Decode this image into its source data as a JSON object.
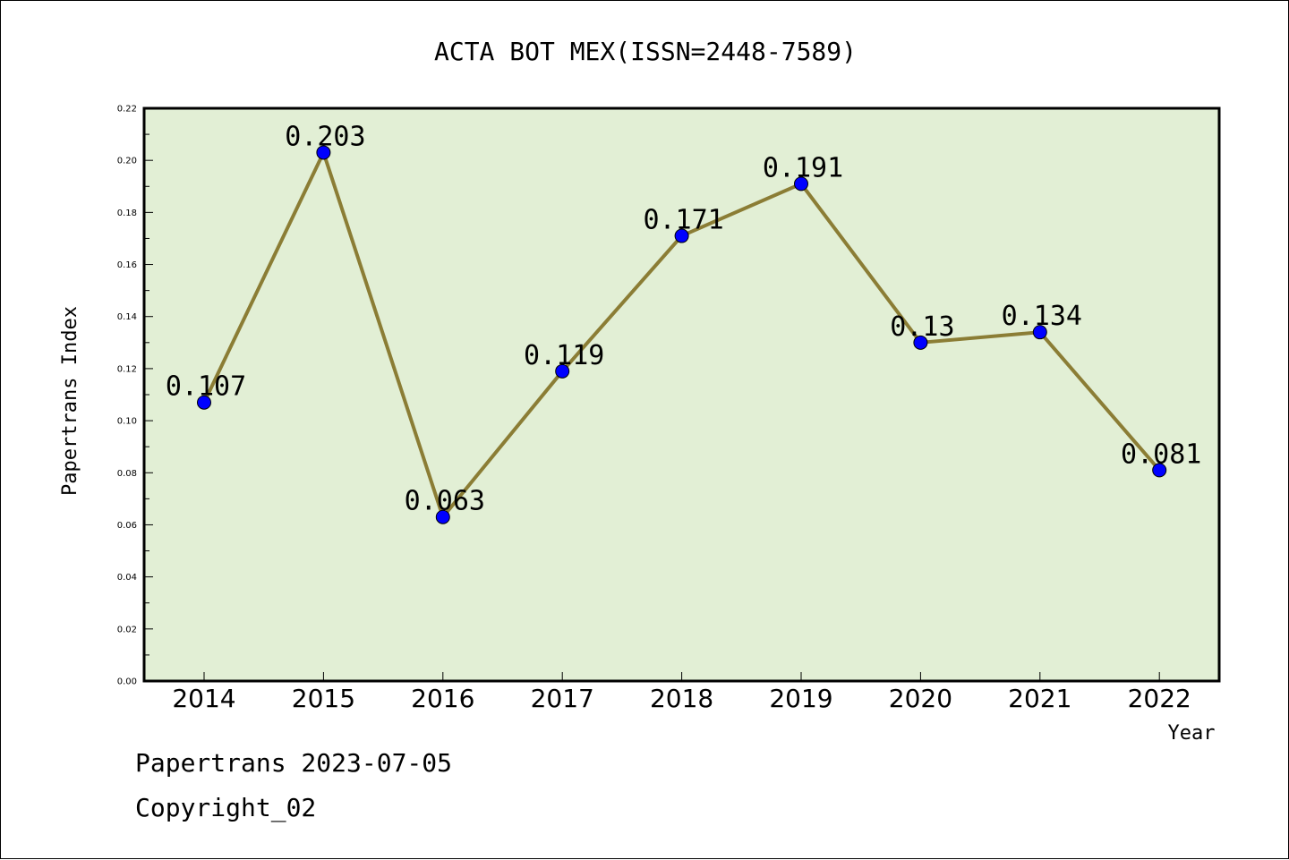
{
  "chart_data": {
    "type": "line",
    "title": "ACTA BOT MEX(ISSN=2448-7589)",
    "xlabel": "Year",
    "ylabel": "Papertrans Index",
    "categories": [
      "2014",
      "2015",
      "2016",
      "2017",
      "2018",
      "2019",
      "2020",
      "2021",
      "2022"
    ],
    "series": [
      {
        "values": [
          0.107,
          0.203,
          0.063,
          0.119,
          0.171,
          0.191,
          0.13,
          0.134,
          0.081
        ],
        "labels": [
          "0.107",
          "0.203",
          "0.063",
          "0.119",
          "0.171",
          "0.191",
          "0.13",
          "0.134",
          "0.081"
        ]
      }
    ],
    "ylim": [
      0.0,
      0.22
    ],
    "yticks": [
      "0.00",
      "0.02",
      "0.04",
      "0.06",
      "0.08",
      "0.10",
      "0.12",
      "0.14",
      "0.16",
      "0.18",
      "0.20",
      "0.22"
    ],
    "grid": false,
    "colors": {
      "plot_background": "#e2efd5",
      "line": "#8b7d35",
      "marker": "#0000ff"
    }
  },
  "footer": {
    "line1": "Papertrans 2023-07-05",
    "line2": "Copyright_02"
  }
}
